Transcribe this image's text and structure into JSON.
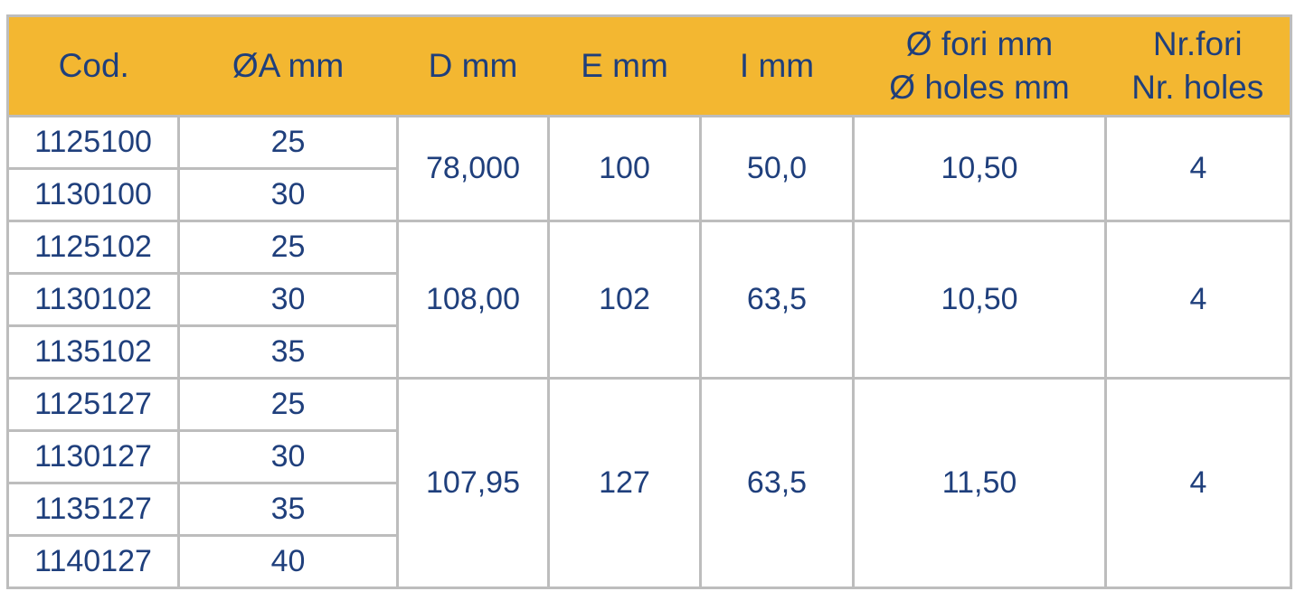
{
  "colors": {
    "header_bg": "#f3b731",
    "text": "#1f3f7c",
    "border": "#bdbdbd"
  },
  "headers": [
    {
      "l1": "Cod.",
      "l2": ""
    },
    {
      "l1": "ØA mm",
      "l2": ""
    },
    {
      "l1": "D mm",
      "l2": ""
    },
    {
      "l1": "E mm",
      "l2": ""
    },
    {
      "l1": "I mm",
      "l2": ""
    },
    {
      "l1": "Ø fori mm",
      "l2": "Ø holes mm"
    },
    {
      "l1": "Nr.fori",
      "l2": "Nr. holes"
    }
  ],
  "groups": [
    {
      "D": "78,000",
      "E": "100",
      "I": "50,0",
      "holes_d": "10,50",
      "holes_n": "4",
      "rows": [
        {
          "cod": "1125100",
          "a": "25"
        },
        {
          "cod": "1130100",
          "a": "30"
        }
      ]
    },
    {
      "D": "108,00",
      "E": "102",
      "I": "63,5",
      "holes_d": "10,50",
      "holes_n": "4",
      "rows": [
        {
          "cod": "1125102",
          "a": "25"
        },
        {
          "cod": "1130102",
          "a": "30"
        },
        {
          "cod": "1135102",
          "a": "35"
        }
      ]
    },
    {
      "D": "107,95",
      "E": "127",
      "I": "63,5",
      "holes_d": "11,50",
      "holes_n": "4",
      "rows": [
        {
          "cod": "1125127",
          "a": "25"
        },
        {
          "cod": "1130127",
          "a": "30"
        },
        {
          "cod": "1135127",
          "a": "35"
        },
        {
          "cod": "1140127",
          "a": "40"
        }
      ]
    }
  ]
}
